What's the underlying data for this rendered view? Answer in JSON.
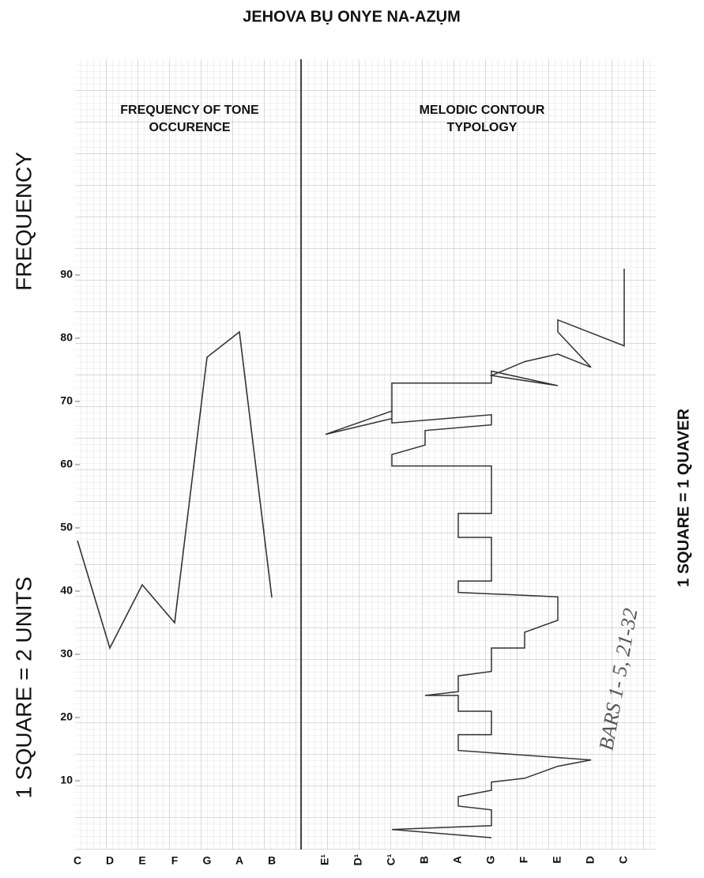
{
  "title": "JEHOVA BỤ ONYE NA-AZỤM",
  "chart_data": [
    {
      "type": "line",
      "title": "FREQUENCY OF TONE OCCURENCE",
      "y_label": "FREQUENCY",
      "annotation": "1 SQUARE = 2 UNITS",
      "categories": [
        "C",
        "D",
        "E",
        "F",
        "G",
        "A",
        "B"
      ],
      "values": [
        48,
        31,
        41,
        35,
        77,
        81,
        39
      ],
      "color": "#333333",
      "ylim": [
        0,
        100
      ],
      "yticks": [
        10,
        20,
        30,
        40,
        50,
        60,
        70,
        80,
        90
      ]
    },
    {
      "type": "contour",
      "title": "MELODIC CONTOUR TYPOLOGY",
      "annotations": [
        "1 SQUARE = 1 QUAVER",
        "BARS 1- 5, 21-32"
      ],
      "categories": [
        "E¹",
        "D¹",
        "C¹",
        "B",
        "A",
        "G",
        "F",
        "E",
        "D",
        "C"
      ],
      "x": [
        "G",
        "C¹",
        "G",
        "G",
        "A",
        "A",
        "G",
        "G",
        "F",
        "E",
        "D",
        "A",
        "A",
        "G",
        "G",
        "A",
        "A",
        "B",
        "A",
        "A",
        "G",
        "G",
        "F",
        "F",
        "E",
        "E",
        "A",
        "A",
        "G",
        "G",
        "A",
        "A",
        "G",
        "G",
        "C¹",
        "C¹",
        "B",
        "B",
        "G",
        "G",
        "C¹",
        "C¹",
        "E¹",
        "C¹",
        "C¹",
        "G",
        "G",
        "E",
        "G",
        "F",
        "E",
        "D",
        "E",
        "E",
        "C",
        "C",
        "C"
      ],
      "y": [
        1,
        2.3,
        2.9,
        5.4,
        6,
        7.5,
        8.5,
        9.8,
        10.4,
        12.3,
        13.3,
        14.8,
        17.3,
        17.3,
        21,
        21,
        23.5,
        23.5,
        24.1,
        26.6,
        27.3,
        31,
        31,
        33.5,
        35.4,
        39.1,
        39.8,
        41.6,
        41.6,
        48.5,
        48.5,
        52.3,
        52.3,
        59.8,
        59.8,
        61.6,
        63.1,
        65.4,
        66.3,
        67.9,
        66.6,
        68.5,
        64.8,
        67.3,
        72.9,
        72.9,
        74.8,
        72.5,
        74.1,
        76.3,
        77.5,
        75.4,
        81,
        82.9,
        78.8,
        85,
        91
      ],
      "color": "#333333",
      "ylim": [
        0,
        100
      ]
    }
  ]
}
